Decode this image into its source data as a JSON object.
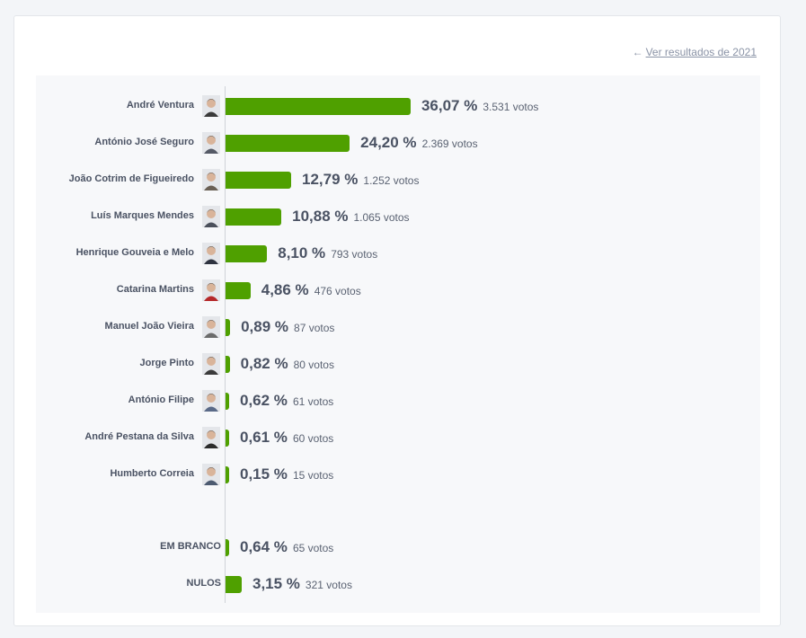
{
  "link": {
    "icon": "arrow-left-icon",
    "label": "Ver resultados de 2021"
  },
  "colors": {
    "bar": "#4fa000",
    "text": "#4a5263"
  },
  "candidates": [
    {
      "name": "André Ventura",
      "pct": 36.07,
      "pct_label": "36,07 %",
      "votes": "3.531 votos",
      "photo": "#3a3a3a"
    },
    {
      "name": "António José Seguro",
      "pct": 24.2,
      "pct_label": "24,20 %",
      "votes": "2.369 votos",
      "photo": "#555a66"
    },
    {
      "name": "João Cotrim de Figueiredo",
      "pct": 12.79,
      "pct_label": "12,79 %",
      "votes": "1.252 votos",
      "photo": "#6a6055"
    },
    {
      "name": "Luís Marques Mendes",
      "pct": 10.88,
      "pct_label": "10,88 %",
      "votes": "1.065 votos",
      "photo": "#4a4f5a"
    },
    {
      "name": "Henrique Gouveia e Melo",
      "pct": 8.1,
      "pct_label": "8,10 %",
      "votes": "793 votos",
      "photo": "#2e3340"
    },
    {
      "name": "Catarina Martins",
      "pct": 4.86,
      "pct_label": "4,86 %",
      "votes": "476 votos",
      "photo": "#b5282a"
    },
    {
      "name": "Manuel João Vieira",
      "pct": 0.89,
      "pct_label": "0,89 %",
      "votes": "87 votos",
      "photo": "#6b6b6b"
    },
    {
      "name": "Jorge Pinto",
      "pct": 0.82,
      "pct_label": "0,82 %",
      "votes": "80 votos",
      "photo": "#3b3b3b"
    },
    {
      "name": "António Filipe",
      "pct": 0.62,
      "pct_label": "0,62 %",
      "votes": "61 votos",
      "photo": "#5a6a88"
    },
    {
      "name": "André Pestana da Silva",
      "pct": 0.61,
      "pct_label": "0,61 %",
      "votes": "60 votos",
      "photo": "#2b2b2b"
    },
    {
      "name": "Humberto Correia",
      "pct": 0.15,
      "pct_label": "0,15 %",
      "votes": "15 votos",
      "photo": "#4c5a70"
    }
  ],
  "others": [
    {
      "name": "EM BRANCO",
      "pct": 0.64,
      "pct_label": "0,64 %",
      "votes": "65 votos"
    },
    {
      "name": "NULOS",
      "pct": 3.15,
      "pct_label": "3,15 %",
      "votes": "321 votos"
    }
  ]
}
